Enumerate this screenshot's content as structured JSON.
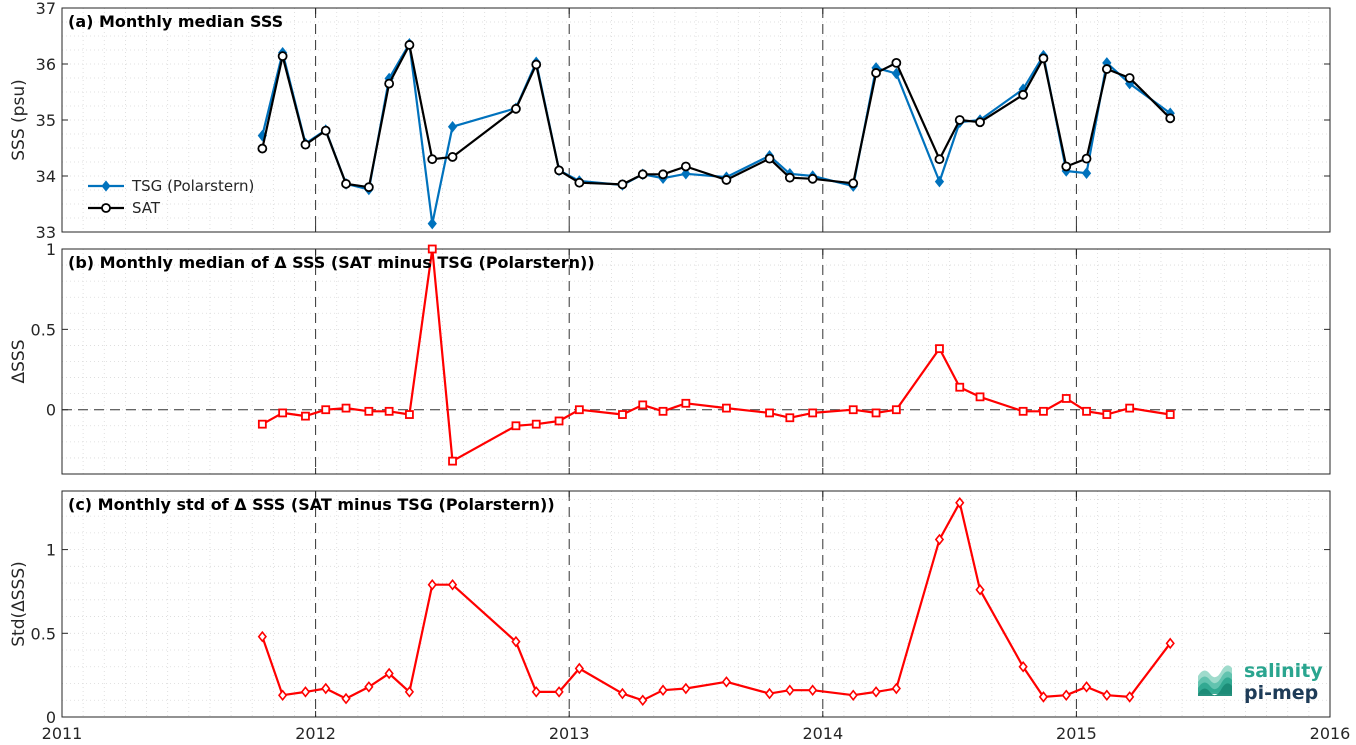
{
  "chart_data": [
    {
      "type": "line",
      "title": "(a) Monthly median SSS",
      "xlabel": "",
      "ylabel": "SSS (psu)",
      "xlim": [
        2011,
        2016
      ],
      "ylim": [
        33,
        37
      ],
      "yticks": [
        33,
        34,
        35,
        36,
        37
      ],
      "grid": true,
      "legend": "left",
      "series": [
        {
          "name": "TSG (Polarstern)",
          "color": "#0072BD",
          "marker": "diamond",
          "x": [
            2011.79,
            2011.87,
            2011.96,
            2012.04,
            2012.12,
            2012.21,
            2012.29,
            2012.37,
            2012.46,
            2012.54,
            2012.79,
            2012.87,
            2012.96,
            2013.04,
            2013.21,
            2013.29,
            2013.37,
            2013.46,
            2013.62,
            2013.79,
            2013.87,
            2013.96,
            2014.12,
            2014.21,
            2014.29,
            2014.46,
            2014.54,
            2014.62,
            2014.79,
            2014.87,
            2014.96,
            2015.04,
            2015.12,
            2015.21,
            2015.37
          ],
          "y": [
            34.72,
            36.2,
            34.58,
            34.82,
            33.86,
            33.76,
            35.74,
            36.36,
            33.15,
            34.88,
            35.21,
            36.03,
            34.1,
            33.91,
            33.84,
            34.03,
            33.96,
            34.04,
            33.98,
            34.36,
            34.04,
            34.0,
            33.82,
            35.93,
            35.83,
            33.9,
            34.96,
            35.0,
            35.55,
            36.15,
            34.09,
            34.05,
            36.02,
            35.65,
            35.12
          ]
        },
        {
          "name": "SAT",
          "color": "#000000",
          "marker": "circle",
          "x": [
            2011.79,
            2011.87,
            2011.96,
            2012.04,
            2012.12,
            2012.21,
            2012.29,
            2012.37,
            2012.46,
            2012.54,
            2012.79,
            2012.87,
            2012.96,
            2013.04,
            2013.21,
            2013.29,
            2013.37,
            2013.46,
            2013.62,
            2013.79,
            2013.87,
            2013.96,
            2014.12,
            2014.21,
            2014.29,
            2014.46,
            2014.54,
            2014.62,
            2014.79,
            2014.87,
            2014.96,
            2015.04,
            2015.12,
            2015.21,
            2015.37
          ],
          "y": [
            34.49,
            36.14,
            34.56,
            34.81,
            33.86,
            33.8,
            35.65,
            36.34,
            34.3,
            34.34,
            35.2,
            35.99,
            34.1,
            33.88,
            33.85,
            34.03,
            34.03,
            34.17,
            33.93,
            34.31,
            33.97,
            33.95,
            33.87,
            35.84,
            36.02,
            34.3,
            35.0,
            34.96,
            35.45,
            36.1,
            34.17,
            34.31,
            35.91,
            35.75,
            35.03
          ]
        }
      ]
    },
    {
      "type": "line",
      "title": "(b) Monthly median of Δ SSS (SAT minus TSG (Polarstern))",
      "xlabel": "",
      "ylabel": "ΔSSS",
      "xlim": [
        2011,
        2016
      ],
      "ylim": [
        -0.4,
        1
      ],
      "yticks": [
        0,
        0.5,
        1
      ],
      "grid": true,
      "zero_line": true,
      "series": [
        {
          "color": "#FF0000",
          "marker": "square",
          "x": [
            2011.79,
            2011.87,
            2011.96,
            2012.04,
            2012.12,
            2012.21,
            2012.29,
            2012.37,
            2012.46,
            2012.54,
            2012.79,
            2012.87,
            2012.96,
            2013.04,
            2013.21,
            2013.29,
            2013.37,
            2013.46,
            2013.62,
            2013.79,
            2013.87,
            2013.96,
            2014.12,
            2014.21,
            2014.29,
            2014.46,
            2014.54,
            2014.62,
            2014.79,
            2014.87,
            2014.96,
            2015.04,
            2015.12,
            2015.21,
            2015.37
          ],
          "y": [
            -0.09,
            -0.02,
            -0.04,
            0.0,
            0.01,
            -0.01,
            -0.01,
            -0.03,
            1.0,
            -0.32,
            -0.1,
            -0.09,
            -0.07,
            0.0,
            -0.03,
            0.03,
            -0.01,
            0.04,
            0.01,
            -0.02,
            -0.05,
            -0.02,
            0.0,
            -0.02,
            0.0,
            0.38,
            0.14,
            0.08,
            -0.01,
            -0.01,
            0.07,
            -0.01,
            -0.03,
            0.01,
            -0.03
          ]
        }
      ]
    },
    {
      "type": "line",
      "title": "(c) Monthly std of Δ SSS (SAT minus TSG (Polarstern))",
      "xlabel": "",
      "ylabel": "Std(ΔSSS)",
      "xlim": [
        2011,
        2016
      ],
      "ylim": [
        0,
        1.35
      ],
      "yticks": [
        0,
        0.5,
        1
      ],
      "xticks": [
        2011,
        2012,
        2013,
        2014,
        2015,
        2016
      ],
      "grid": true,
      "series": [
        {
          "color": "#FF0000",
          "marker": "diamond",
          "x": [
            2011.79,
            2011.87,
            2011.96,
            2012.04,
            2012.12,
            2012.21,
            2012.29,
            2012.37,
            2012.46,
            2012.54,
            2012.79,
            2012.87,
            2012.96,
            2013.04,
            2013.21,
            2013.29,
            2013.37,
            2013.46,
            2013.62,
            2013.79,
            2013.87,
            2013.96,
            2014.12,
            2014.21,
            2014.29,
            2014.46,
            2014.54,
            2014.62,
            2014.79,
            2014.87,
            2014.96,
            2015.04,
            2015.12,
            2015.21,
            2015.37
          ],
          "y": [
            0.48,
            0.13,
            0.15,
            0.17,
            0.11,
            0.18,
            0.26,
            0.15,
            0.79,
            0.79,
            0.45,
            0.15,
            0.15,
            0.29,
            0.14,
            0.1,
            0.16,
            0.17,
            0.21,
            0.14,
            0.16,
            0.16,
            0.13,
            0.15,
            0.17,
            1.06,
            1.28,
            0.76,
            0.3,
            0.12,
            0.13,
            0.18,
            0.13,
            0.12,
            0.44
          ]
        }
      ]
    }
  ],
  "logo": {
    "line1": "salinity",
    "line2": "pi-mep"
  }
}
